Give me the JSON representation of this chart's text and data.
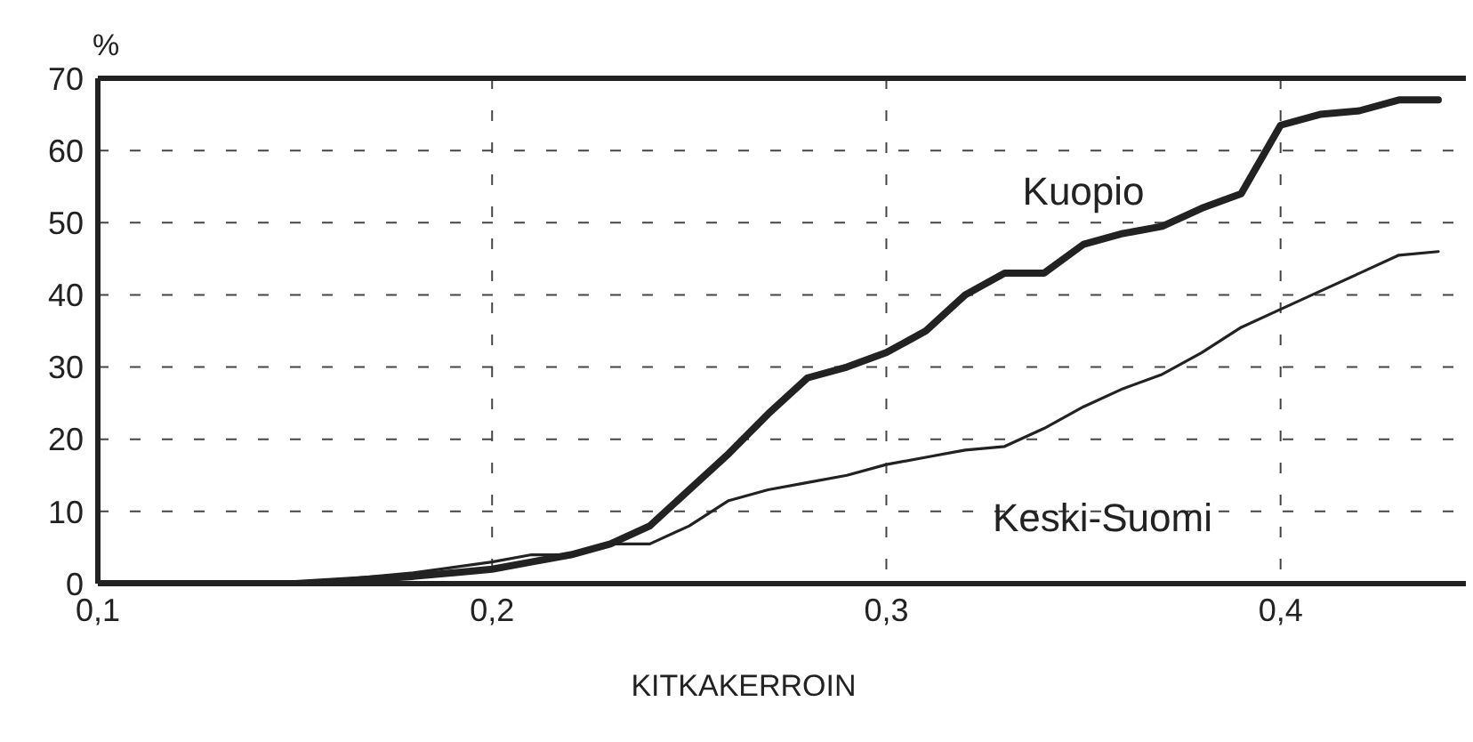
{
  "chart_data": {
    "type": "line",
    "xlabel": "KITKAKERROIN",
    "ylabel": "%",
    "x": [
      0.1,
      0.15,
      0.18,
      0.2,
      0.21,
      0.22,
      0.23,
      0.24,
      0.25,
      0.26,
      0.27,
      0.28,
      0.29,
      0.3,
      0.31,
      0.32,
      0.33,
      0.34,
      0.35,
      0.36,
      0.37,
      0.38,
      0.39,
      0.4,
      0.41,
      0.42,
      0.43,
      0.44
    ],
    "series": [
      {
        "name": "Kuopio",
        "color": "#222222",
        "values": [
          0,
          0,
          1,
          2,
          3,
          4,
          5.5,
          8,
          13,
          18,
          23.5,
          28.5,
          30,
          32,
          35,
          40,
          43,
          43,
          47,
          48.5,
          49.5,
          52,
          54,
          63.5,
          65,
          65.5,
          67,
          67
        ]
      },
      {
        "name": "Keski-Suomi",
        "color": "#222222",
        "values": [
          0,
          0,
          1.5,
          3,
          4,
          4,
          5.5,
          5.5,
          8,
          11.5,
          13,
          14,
          15,
          16.5,
          17.5,
          18.5,
          19,
          21.5,
          24.5,
          27,
          29,
          32,
          35.5,
          38,
          40.5,
          43,
          45.5,
          46
        ]
      }
    ],
    "xlim": [
      0.1,
      0.447
    ],
    "ylim": [
      0,
      70
    ],
    "xticks": [
      {
        "value": 0.1,
        "label": "0,1"
      },
      {
        "value": 0.2,
        "label": "0,2"
      },
      {
        "value": 0.3,
        "label": "0,3"
      },
      {
        "value": 0.4,
        "label": "0,4"
      }
    ],
    "yticks": [
      0,
      10,
      20,
      30,
      40,
      50,
      60,
      70
    ],
    "grid": true,
    "marker": "none",
    "line_style": "solid"
  }
}
